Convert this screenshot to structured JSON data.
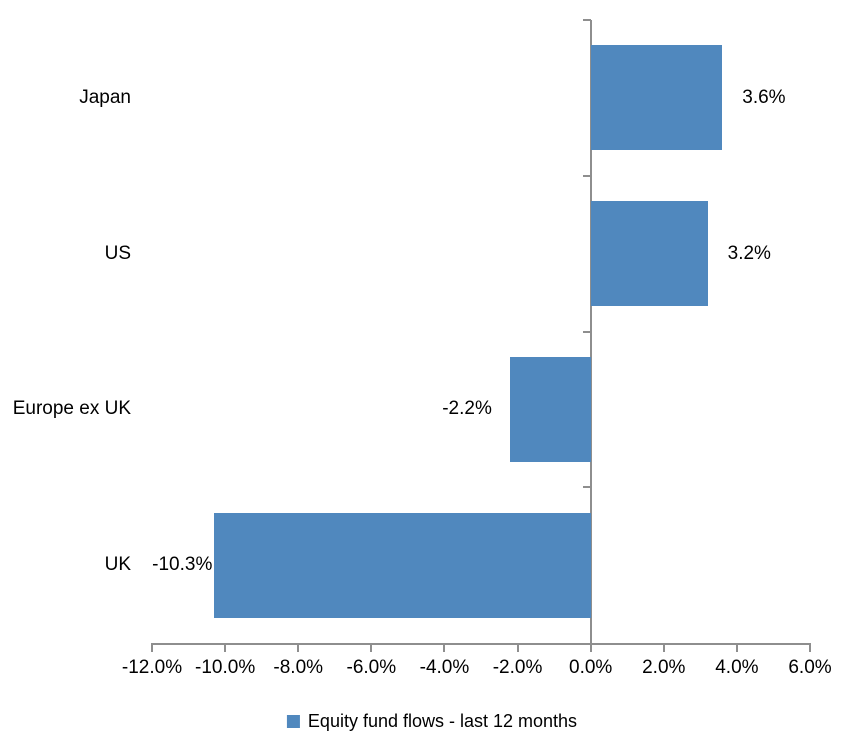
{
  "chart_data": {
    "type": "bar",
    "orientation": "horizontal",
    "title": "",
    "categories": [
      "Japan",
      "US",
      "Europe ex UK",
      "UK"
    ],
    "series": [
      {
        "name": "Equity fund flows - last 12 months",
        "values": [
          3.6,
          3.2,
          -2.2,
          -10.3
        ],
        "data_labels": [
          "3.6%",
          "3.2%",
          "-2.2%",
          "-10.3%"
        ]
      }
    ],
    "x_axis": {
      "min": -12,
      "max": 6,
      "tick_step": 2,
      "tick_labels": [
        "-12.0%",
        "-10.0%",
        "-8.0%",
        "-6.0%",
        "-4.0%",
        "-2.0%",
        "0.0%",
        "2.0%",
        "4.0%",
        "6.0%"
      ]
    },
    "grid": false,
    "legend_position": "bottom",
    "colors": {
      "bar": "#5088BE",
      "axis": "#8E8E8E",
      "text": "#000000",
      "background": "#FFFFFF"
    }
  },
  "legend": {
    "label": "Equity fund flows - last 12 months"
  }
}
